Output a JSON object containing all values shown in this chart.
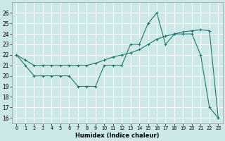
{
  "xlabel": "Humidex (Indice chaleur)",
  "background_color": "#cde8e8",
  "grid_color": "#ffffff",
  "line_color": "#1a7a6a",
  "x_values": [
    0,
    1,
    2,
    3,
    4,
    5,
    6,
    7,
    8,
    9,
    10,
    11,
    12,
    13,
    14,
    15,
    16,
    17,
    18,
    19,
    20,
    21,
    22,
    23
  ],
  "line_smooth": [
    22.0,
    21.5,
    21.0,
    21.0,
    21.0,
    21.0,
    21.0,
    21.0,
    21.0,
    21.2,
    21.5,
    21.8,
    22.0,
    22.2,
    22.5,
    23.0,
    23.5,
    23.8,
    24.0,
    24.2,
    24.3,
    24.4,
    24.3,
    16.0
  ],
  "line_jagged": [
    22,
    21,
    20,
    20,
    20,
    20,
    20,
    19,
    19,
    19,
    21,
    21,
    21,
    23,
    23,
    25,
    26,
    23,
    24,
    24,
    24,
    22,
    17,
    16
  ],
  "ylim": [
    15.5,
    27
  ],
  "xlim": [
    -0.5,
    23.5
  ],
  "yticks": [
    16,
    17,
    18,
    19,
    20,
    21,
    22,
    23,
    24,
    25,
    26
  ],
  "xticks": [
    0,
    1,
    2,
    3,
    4,
    5,
    6,
    7,
    8,
    9,
    10,
    11,
    12,
    13,
    14,
    15,
    16,
    17,
    18,
    19,
    20,
    21,
    22,
    23
  ]
}
